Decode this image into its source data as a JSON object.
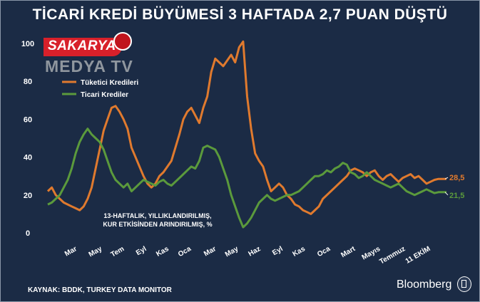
{
  "headline": "TİCARİ KREDİ BÜYÜMESİ 3 HAFTADA 2,7 PUAN DÜŞTÜ",
  "watermark": {
    "line1": "SAKARYA",
    "line2": "MEDYA TV"
  },
  "source": "KAYNAK: BDDK, TURKEY DATA MONITOR",
  "brand": "Bloomberg",
  "chart_data": {
    "type": "line",
    "title": "",
    "annotation": [
      "13-HAFTALIK, YILLIKLANDIRILMIŞ,",
      "KUR ETKİSİNDEN ARINDIRILMIŞ, %"
    ],
    "ylim": [
      0,
      100
    ],
    "yticks": [
      0,
      20,
      40,
      60,
      80,
      100
    ],
    "xticks": [
      "Mar",
      "May",
      "Tem",
      "Eyl",
      "Kas",
      "Oca",
      "Mar",
      "May",
      "Haz",
      "Eyl",
      "Kas",
      "Oca",
      "Mart",
      "Mayıs",
      "Temmuz",
      "11 EKİM"
    ],
    "x_index_range": [
      0,
      100
    ],
    "x_tick_index": [
      6,
      15,
      23,
      31,
      39,
      47,
      56,
      64,
      72,
      80,
      88,
      97,
      106,
      115,
      124,
      133
    ],
    "legend": {
      "placement": "top-left"
    },
    "series": [
      {
        "name": "Tüketici Kredileri",
        "color": "#e07a2e",
        "end_label": "28,5",
        "values": [
          22,
          24,
          20,
          18,
          16,
          15,
          14,
          13,
          12,
          14,
          18,
          24,
          34,
          44,
          54,
          60,
          66,
          67,
          64,
          60,
          55,
          45,
          40,
          35,
          30,
          26,
          24,
          26,
          30,
          32,
          35,
          38,
          45,
          52,
          60,
          64,
          66,
          62,
          58,
          66,
          72,
          85,
          92,
          90,
          88,
          91,
          94,
          90,
          98,
          101,
          72,
          55,
          42,
          38,
          35,
          28,
          22,
          24,
          26,
          24,
          20,
          18,
          15,
          14,
          12,
          11,
          10,
          12,
          14,
          18,
          20,
          22,
          24,
          26,
          28,
          30,
          33,
          34,
          33,
          32,
          30,
          32,
          33,
          30,
          28,
          30,
          31,
          29,
          27,
          29,
          30,
          31,
          29,
          30,
          28,
          26,
          27,
          28,
          28.5,
          28.5,
          28.5
        ]
      },
      {
        "name": "Ticari Krediler",
        "color": "#5b9a3c",
        "end_label": "21,5",
        "values": [
          15,
          16,
          18,
          20,
          24,
          28,
          34,
          42,
          48,
          52,
          55,
          52,
          50,
          48,
          44,
          38,
          32,
          28,
          26,
          24,
          26,
          22,
          24,
          26,
          28,
          27,
          26,
          25,
          27,
          28,
          26,
          25,
          27,
          29,
          31,
          33,
          35,
          34,
          38,
          45,
          46,
          45,
          44,
          40,
          34,
          28,
          20,
          14,
          8,
          3,
          5,
          8,
          12,
          16,
          18,
          20,
          18,
          17,
          18,
          19,
          20,
          20,
          21,
          22,
          24,
          26,
          28,
          30,
          30,
          31,
          33,
          32,
          34,
          35,
          37,
          36,
          32,
          31,
          29,
          30,
          32,
          30,
          28,
          27,
          26,
          25,
          24,
          25,
          26,
          24,
          22,
          21,
          20,
          21,
          22,
          23,
          22,
          21,
          21.5,
          21.5,
          21.5
        ]
      }
    ]
  }
}
